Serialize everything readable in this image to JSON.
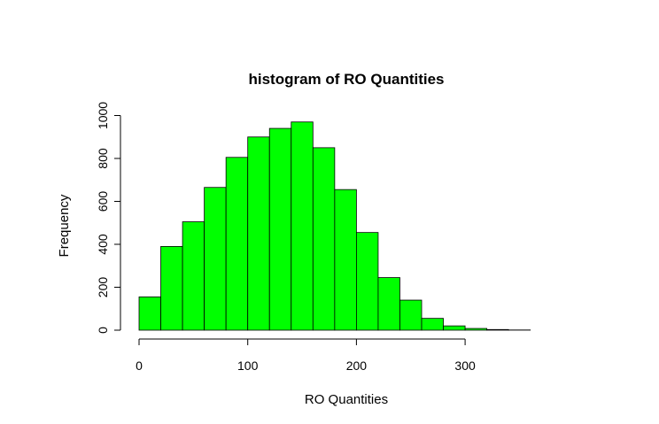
{
  "chart_data": {
    "type": "bar",
    "title": "histogram of RO Quantities",
    "xlabel": "RO Quantities",
    "ylabel": "Frequency",
    "bin_width": 20,
    "bin_starts": [
      0,
      20,
      40,
      60,
      80,
      100,
      120,
      140,
      160,
      180,
      200,
      220,
      240,
      260,
      280,
      300,
      320,
      340,
      360
    ],
    "values": [
      155,
      390,
      505,
      665,
      805,
      900,
      940,
      970,
      850,
      655,
      455,
      245,
      140,
      55,
      20,
      8,
      3,
      1,
      0
    ],
    "xlim": [
      0,
      380
    ],
    "ylim": [
      0,
      1000
    ],
    "x_ticks": [
      "0",
      "100",
      "200",
      "300"
    ],
    "y_ticks": [
      "0",
      "200",
      "400",
      "600",
      "800",
      "1000"
    ],
    "bar_color": "#00ff00",
    "grid": false
  }
}
